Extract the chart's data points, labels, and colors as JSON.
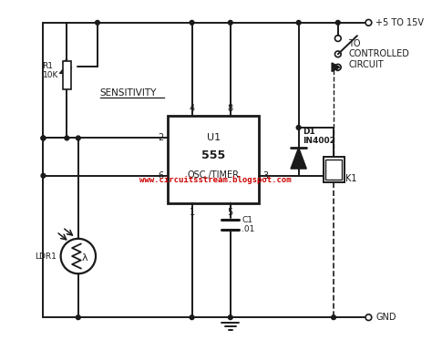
{
  "bg_color": "#ffffff",
  "line_color": "#1a1a1a",
  "watermark": "www.circuitsstream.blogspot.com",
  "watermark_color": "#cc0000",
  "vcc_label": "+5 TO 15V",
  "gnd_label": "GND",
  "sensitivity_label": "SENSITIVITY",
  "r1_label": "R1\n10K",
  "c1_label": "C1\n.01",
  "d1_label": "D1\nIN4002",
  "k1_label": "K1",
  "ldr1_label": "LDR1",
  "controlled_label": "TO\nCONTROLLED\nCIRCUIT",
  "ic_label1": "U1",
  "ic_label2": "555",
  "ic_label3": "OSC./TIMER"
}
